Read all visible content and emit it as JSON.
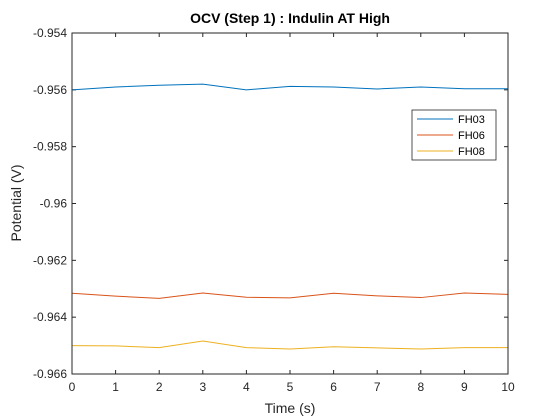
{
  "chart_data": {
    "type": "line",
    "title": "OCV (Step 1) : Indulin AT High",
    "xlabel": "Time (s)",
    "ylabel": "Potential (V)",
    "xlim": [
      0,
      10
    ],
    "ylim": [
      -0.966,
      -0.954
    ],
    "x_ticks": [
      0,
      1,
      2,
      3,
      4,
      5,
      6,
      7,
      8,
      9,
      10
    ],
    "x_tick_labels": [
      "0",
      "1",
      "2",
      "3",
      "4",
      "5",
      "6",
      "7",
      "8",
      "9",
      "10"
    ],
    "y_ticks": [
      -0.954,
      -0.956,
      -0.958,
      -0.96,
      -0.962,
      -0.964,
      -0.966
    ],
    "y_tick_labels": [
      "-0.954",
      "-0.956",
      "-0.958",
      "-0.96",
      "-0.962",
      "-0.964",
      "-0.966"
    ],
    "grid": false,
    "legend_position": "top-right",
    "x": [
      0,
      1,
      2,
      3,
      4,
      5,
      6,
      7,
      8,
      9,
      10
    ],
    "series": [
      {
        "name": "FH03",
        "color": "#0072BD",
        "values": [
          -0.956,
          -0.9559,
          -0.95584,
          -0.9558,
          -0.956,
          -0.95588,
          -0.9559,
          -0.95597,
          -0.9559,
          -0.95596,
          -0.95596
        ]
      },
      {
        "name": "FH06",
        "color": "#D95319",
        "values": [
          -0.96316,
          -0.96326,
          -0.96334,
          -0.96315,
          -0.9633,
          -0.96332,
          -0.96316,
          -0.96325,
          -0.96331,
          -0.96315,
          -0.9632
        ]
      },
      {
        "name": "FH08",
        "color": "#EDB120",
        "values": [
          -0.965,
          -0.96501,
          -0.96507,
          -0.96484,
          -0.96507,
          -0.96512,
          -0.96504,
          -0.96508,
          -0.96512,
          -0.96507,
          -0.96507
        ]
      }
    ]
  }
}
